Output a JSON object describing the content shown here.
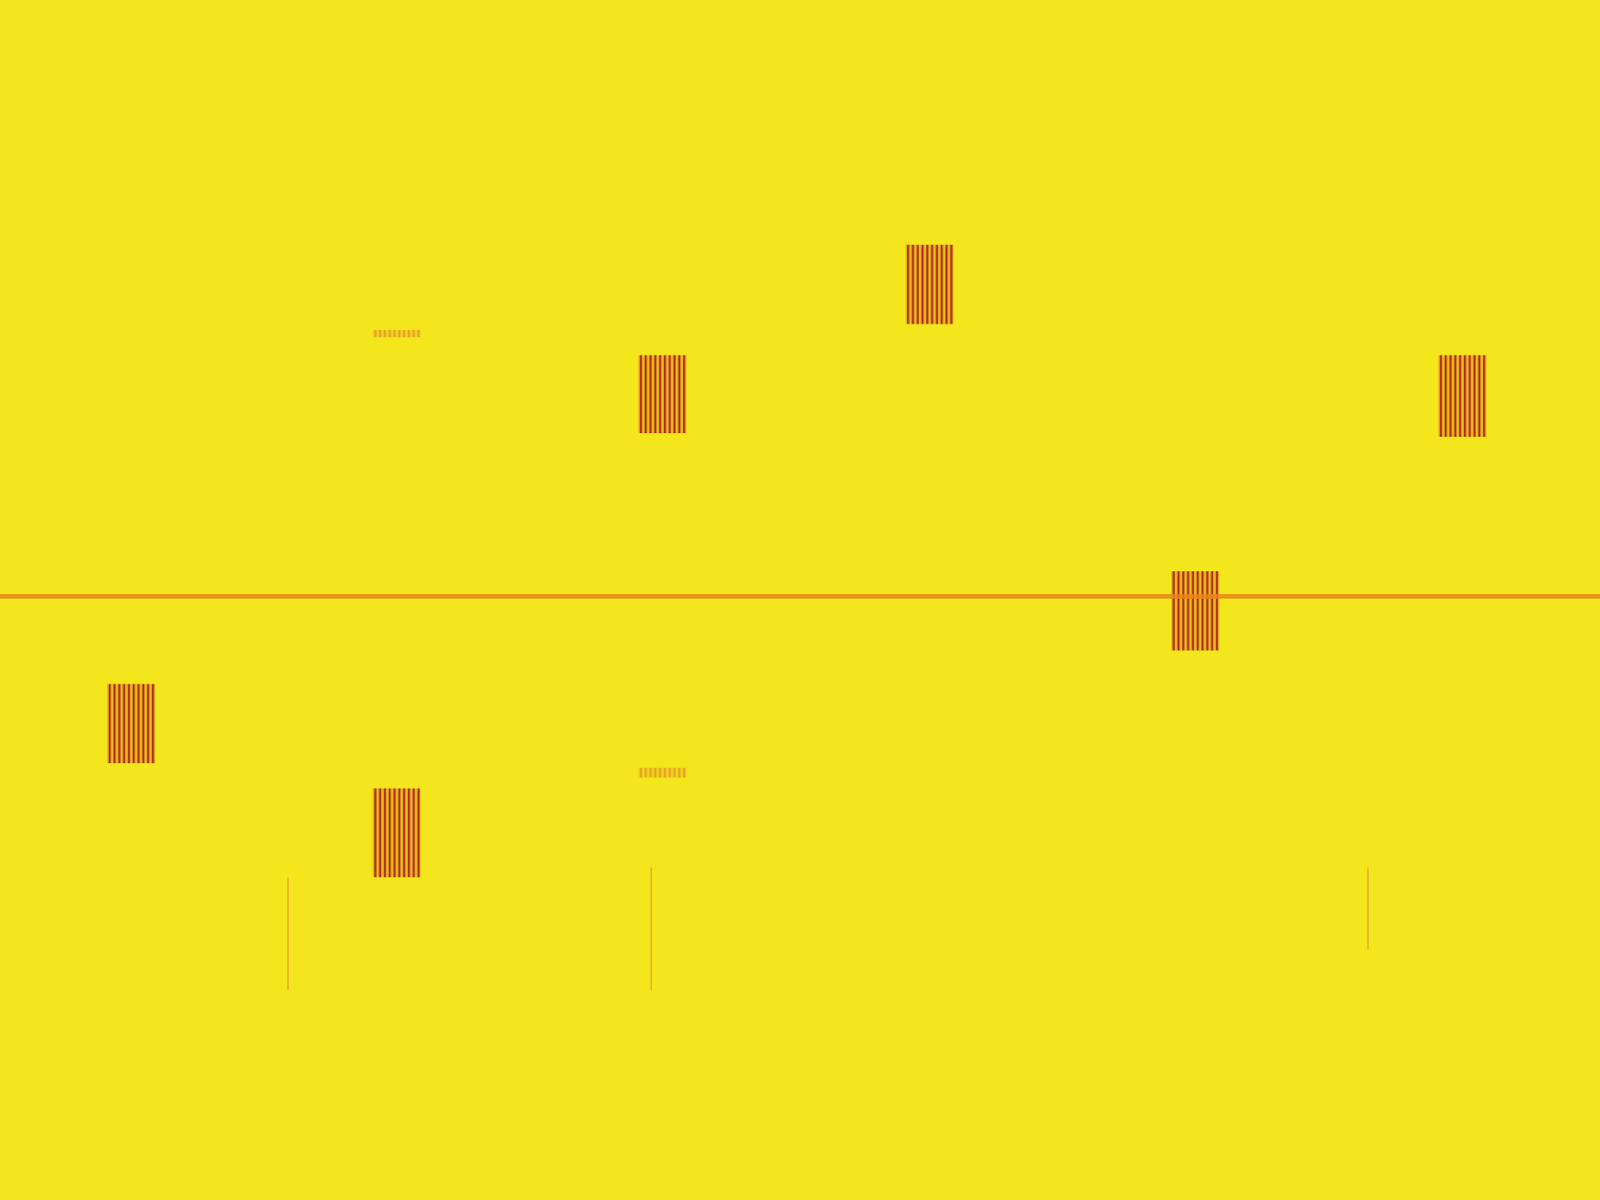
{
  "chart_data": {
    "type": "spectrogram",
    "xlim": [
      0,
      100
    ],
    "ylim": [
      0,
      100
    ],
    "tick_labels": false,
    "grid": false,
    "series": [
      {
        "type": "bursts",
        "color": "#b3261e",
        "values": [
          [
            6.7,
            9.7,
            36.4,
            43.0
          ],
          [
            23.3,
            26.3,
            26.9,
            34.3
          ],
          [
            39.9,
            42.9,
            63.9,
            70.4
          ],
          [
            56.6,
            59.6,
            73.0,
            79.6
          ],
          [
            73.2,
            76.2,
            45.8,
            52.4
          ],
          [
            89.9,
            92.9,
            63.6,
            70.4
          ]
        ]
      },
      {
        "type": "faint_bursts",
        "color": "#e2842a",
        "values": [
          [
            23.3,
            26.3,
            71.9,
            72.5
          ],
          [
            39.9,
            42.9,
            35.2,
            36.0
          ]
        ]
      },
      {
        "type": "tone",
        "color": "#e8861a",
        "values": [
          50.3
        ]
      },
      {
        "type": "streaks",
        "color": "#dc9a35",
        "values": [
          [
            18.0,
            17.5,
            26.9
          ],
          [
            40.7,
            17.5,
            27.7
          ],
          [
            85.5,
            20.9,
            27.7
          ]
        ]
      }
    ]
  }
}
